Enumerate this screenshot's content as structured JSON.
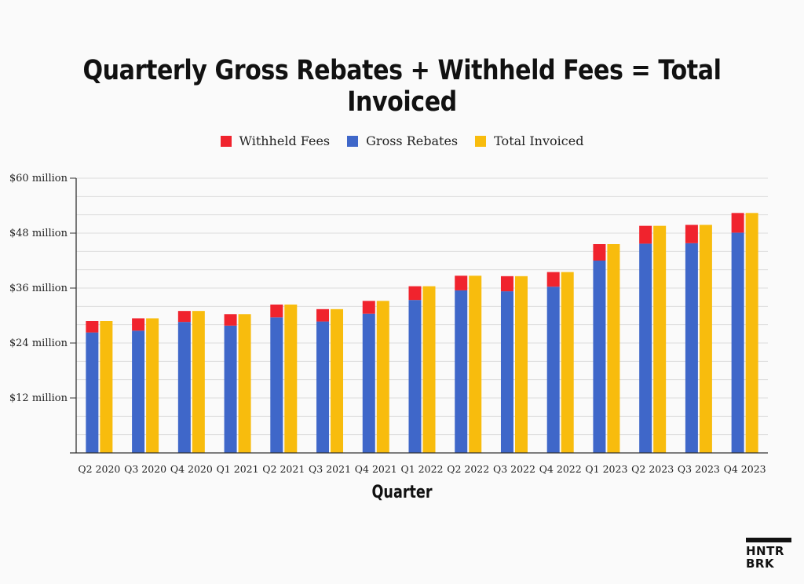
{
  "chart_data": {
    "type": "bar",
    "title": "Quarterly Gross Rebates + Withheld Fees = Total Invoiced",
    "xlabel": "Quarter",
    "ylabel": "",
    "ylim": [
      0,
      60
    ],
    "y_ticks": [
      {
        "value": 60,
        "label": "$60 million"
      },
      {
        "value": 48,
        "label": "$48 million"
      },
      {
        "value": 36,
        "label": "$36 million"
      },
      {
        "value": 24,
        "label": "$24 million"
      },
      {
        "value": 12,
        "label": "$12 million"
      }
    ],
    "grid": true,
    "legend_position": "top-center",
    "categories": [
      "Q2 2020",
      "Q3 2020",
      "Q4 2020",
      "Q1 2021",
      "Q2 2021",
      "Q3 2021",
      "Q4 2021",
      "Q1 2022",
      "Q2 2022",
      "Q3 2022",
      "Q4 2022",
      "Q1 2023",
      "Q2 2023",
      "Q3 2023",
      "Q4 2023"
    ],
    "series": [
      {
        "name": "Withheld Fees",
        "stack": "left",
        "color": "#f0232d",
        "values": [
          2.5,
          2.7,
          2.4,
          2.5,
          2.8,
          2.7,
          2.8,
          3.0,
          3.2,
          3.3,
          3.2,
          3.6,
          3.9,
          4.0,
          4.3
        ]
      },
      {
        "name": "Gross Rebates",
        "stack": "left",
        "color": "#3f67c9",
        "values": [
          26.3,
          26.7,
          28.6,
          27.8,
          29.6,
          28.7,
          30.4,
          33.4,
          35.5,
          35.3,
          36.3,
          42.0,
          45.7,
          45.8,
          48.1
        ]
      },
      {
        "name": "Total Invoiced",
        "stack": "right",
        "color": "#f8bc0d",
        "values": [
          28.8,
          29.4,
          31.0,
          30.3,
          32.4,
          31.4,
          33.2,
          36.4,
          38.7,
          38.6,
          39.5,
          45.6,
          49.6,
          49.8,
          52.4
        ]
      }
    ],
    "legend_order": [
      "Withheld Fees",
      "Gross Rebates",
      "Total Invoiced"
    ]
  },
  "logo": {
    "line1": "HNTR",
    "line2": "BRK"
  }
}
